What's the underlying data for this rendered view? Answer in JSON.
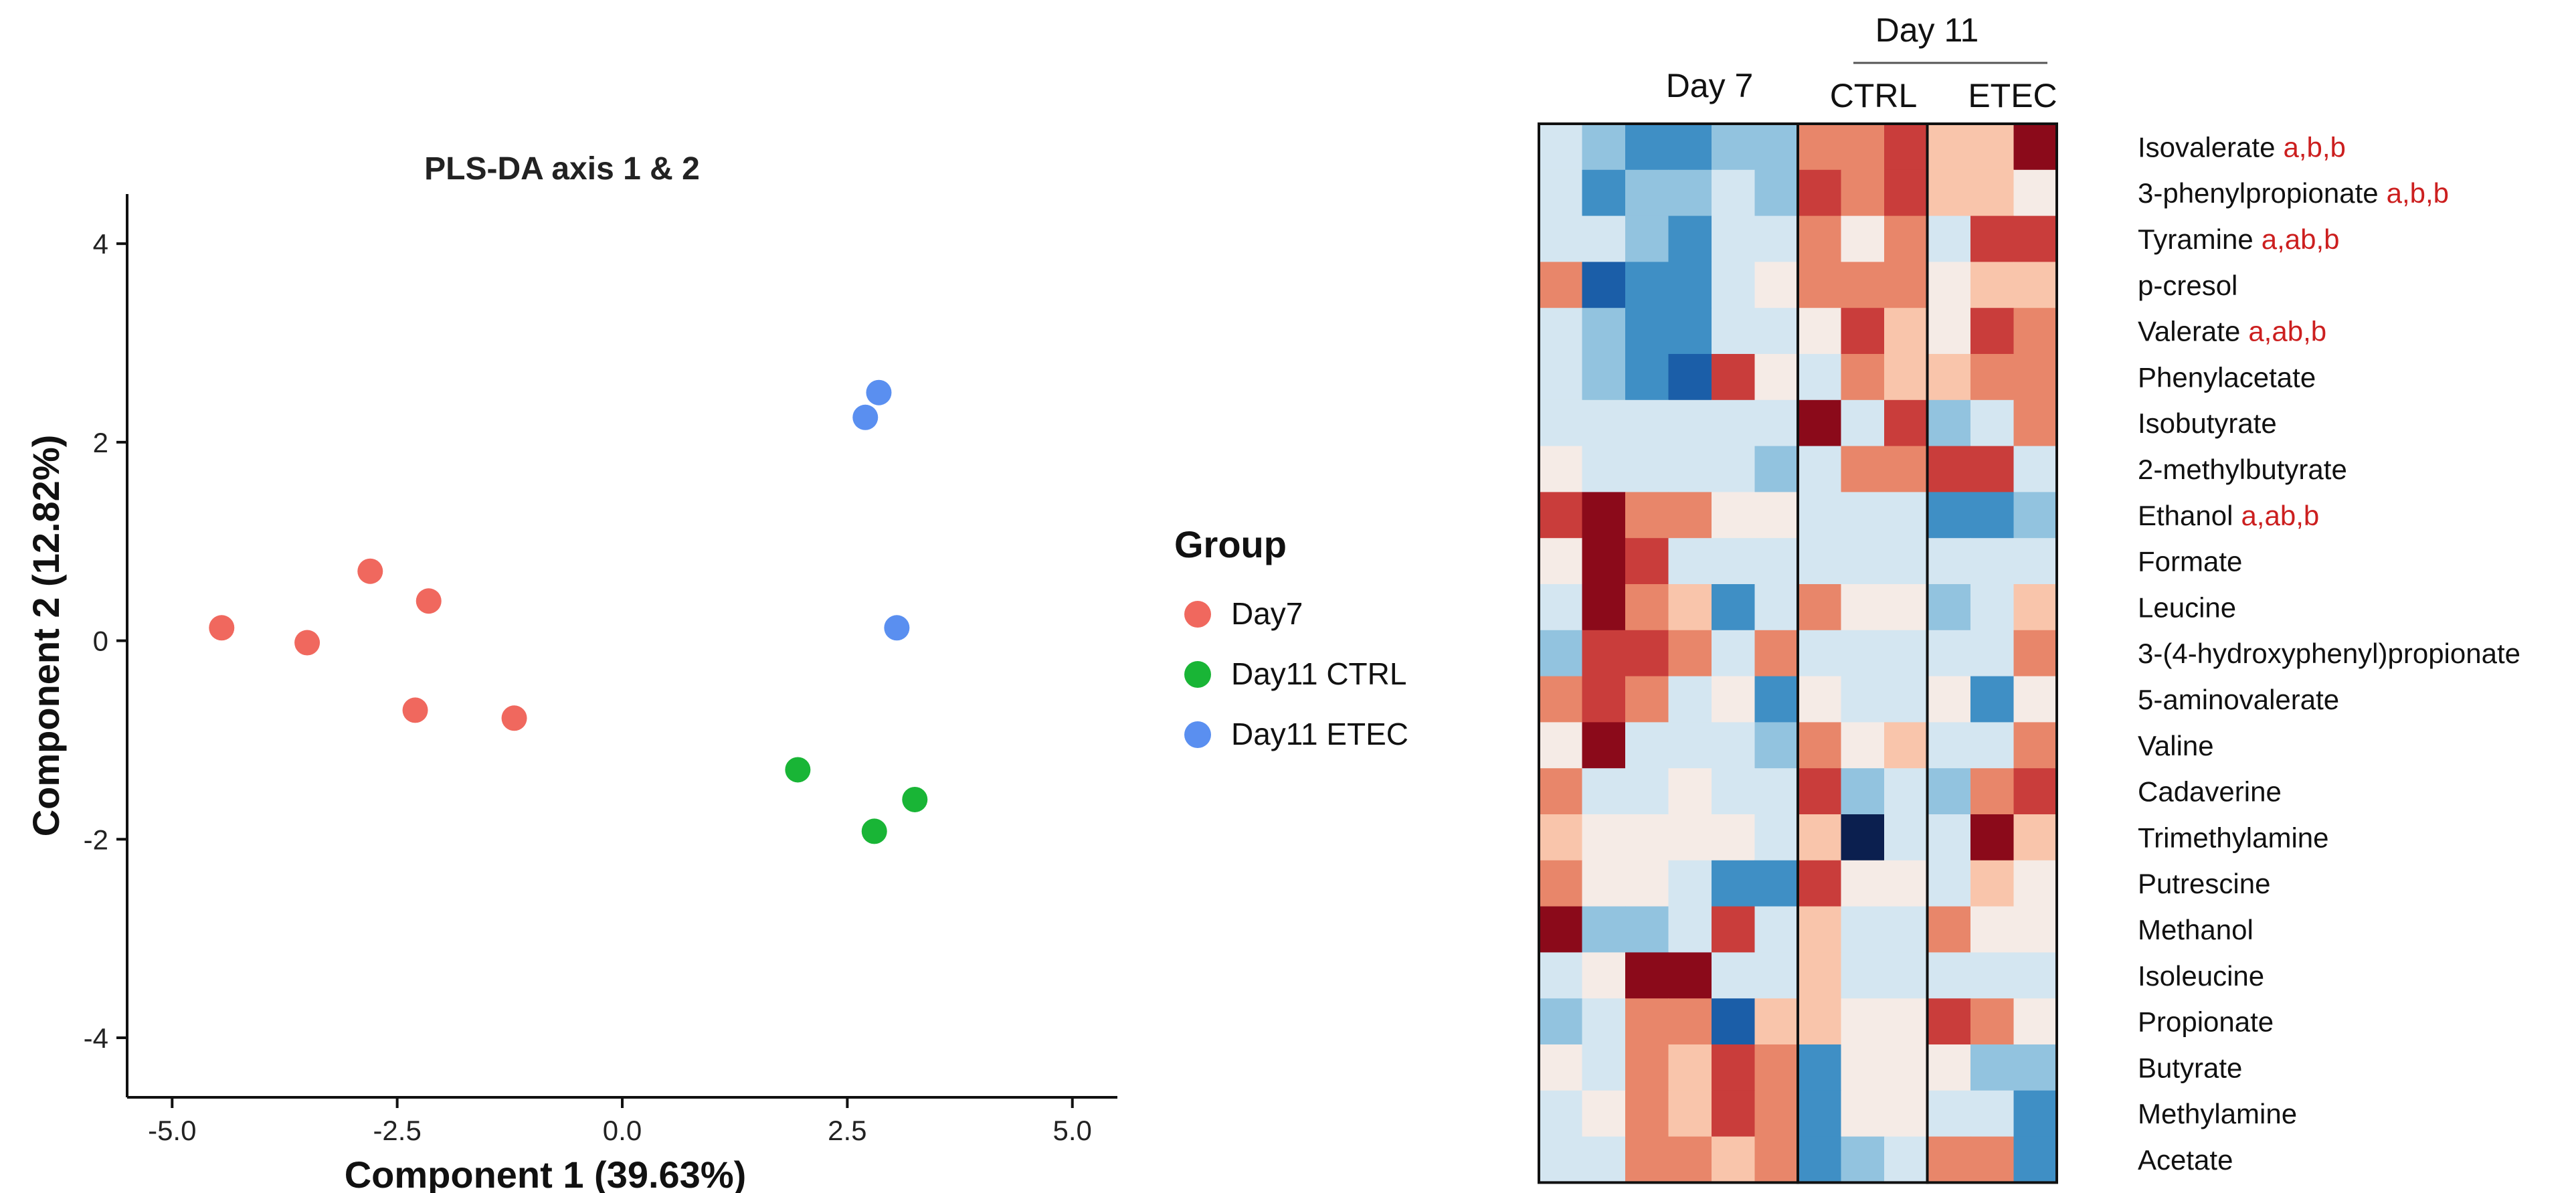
{
  "chart_data": [
    {
      "type": "scatter",
      "title": "PLS-DA axis 1 & 2",
      "xlabel": "Component 1 (39.63%)",
      "ylabel": "Component 2 (12.82%)",
      "xlim": [
        -5.5,
        5.5
      ],
      "ylim": [
        -4.6,
        4.5
      ],
      "xticks": [
        -5,
        -2.5,
        0,
        2.5,
        5
      ],
      "xtick_labels": [
        "-5.0",
        "-2.5",
        "0.0",
        "2.5",
        "5.0"
      ],
      "yticks": [
        -4,
        -2,
        0,
        2,
        4
      ],
      "ytick_labels": [
        "-4",
        "-2",
        "0",
        "2",
        "4"
      ],
      "legend_title": "Group",
      "legend_position": "right",
      "series": [
        {
          "name": "Day7",
          "color": "#f0685e",
          "points": [
            [
              -4.45,
              0.13
            ],
            [
              -3.5,
              -0.02
            ],
            [
              -2.8,
              0.7
            ],
            [
              -2.15,
              0.4
            ],
            [
              -2.3,
              -0.7
            ],
            [
              -1.2,
              -0.78
            ]
          ]
        },
        {
          "name": "Day11 CTRL",
          "color": "#19b536",
          "points": [
            [
              1.95,
              -1.3
            ],
            [
              2.8,
              -1.92
            ],
            [
              3.25,
              -1.6
            ]
          ]
        },
        {
          "name": "Day11 ETEC",
          "color": "#5a8ff0",
          "points": [
            [
              2.7,
              2.25
            ],
            [
              2.85,
              2.5
            ],
            [
              3.05,
              0.13
            ]
          ]
        }
      ]
    },
    {
      "type": "heatmap",
      "header_day7": "Day 7",
      "header_day11": "Day 11",
      "header_ctrl": "CTRL",
      "header_etec": "ETEC",
      "palette": [
        "#0b1f4f",
        "#1b5ea8",
        "#3f8fc5",
        "#92c3df",
        "#d4e6f1",
        "#f5ebe6",
        "#f9c5ab",
        "#e8866a",
        "#c93d3b",
        "#8b0a1a"
      ],
      "rows": [
        {
          "label": "Isovalerate",
          "sig": "a,b,b",
          "values": [
            4,
            3,
            2,
            2,
            3,
            3,
            7,
            7,
            8,
            6,
            6,
            9
          ]
        },
        {
          "label": "3-phenylpropionate",
          "sig": "a,b,b",
          "values": [
            4,
            2,
            3,
            3,
            4,
            3,
            8,
            7,
            8,
            6,
            6,
            5
          ]
        },
        {
          "label": "Tyramine",
          "sig": "a,ab,b",
          "values": [
            4,
            4,
            3,
            2,
            4,
            4,
            7,
            5,
            7,
            4,
            8,
            8
          ]
        },
        {
          "label": "p-cresol",
          "sig": "",
          "values": [
            7,
            1,
            2,
            2,
            4,
            5,
            7,
            7,
            7,
            5,
            6,
            6
          ]
        },
        {
          "label": "Valerate",
          "sig": "a,ab,b",
          "values": [
            4,
            3,
            2,
            2,
            4,
            4,
            5,
            8,
            6,
            5,
            8,
            7
          ]
        },
        {
          "label": "Phenylacetate",
          "sig": "",
          "values": [
            4,
            3,
            2,
            1,
            8,
            5,
            4,
            7,
            6,
            6,
            7,
            7
          ]
        },
        {
          "label": "Isobutyrate",
          "sig": "",
          "values": [
            4,
            4,
            4,
            4,
            4,
            4,
            9,
            4,
            8,
            3,
            4,
            7
          ]
        },
        {
          "label": "2-methylbutyrate",
          "sig": "",
          "values": [
            5,
            4,
            4,
            4,
            4,
            3,
            4,
            7,
            7,
            8,
            8,
            4
          ]
        },
        {
          "label": "Ethanol",
          "sig": "a,ab,b",
          "values": [
            8,
            9,
            7,
            7,
            5,
            5,
            4,
            4,
            4,
            2,
            2,
            3
          ]
        },
        {
          "label": "Formate",
          "sig": "",
          "values": [
            5,
            9,
            8,
            4,
            4,
            4,
            4,
            4,
            4,
            4,
            4,
            4
          ]
        },
        {
          "label": "Leucine",
          "sig": "",
          "values": [
            4,
            9,
            7,
            6,
            2,
            4,
            7,
            5,
            5,
            3,
            4,
            6
          ]
        },
        {
          "label": "3-(4-hydroxyphenyl)propionate",
          "sig": "",
          "values": [
            3,
            8,
            8,
            7,
            4,
            7,
            4,
            4,
            4,
            4,
            4,
            7
          ]
        },
        {
          "label": "5-aminovalerate",
          "sig": "",
          "values": [
            7,
            8,
            7,
            4,
            5,
            2,
            5,
            4,
            4,
            5,
            2,
            5
          ]
        },
        {
          "label": "Valine",
          "sig": "",
          "values": [
            5,
            9,
            4,
            4,
            4,
            3,
            7,
            5,
            6,
            4,
            4,
            7
          ]
        },
        {
          "label": "Cadaverine",
          "sig": "",
          "values": [
            7,
            4,
            4,
            5,
            4,
            4,
            8,
            3,
            4,
            3,
            7,
            8
          ]
        },
        {
          "label": "Trimethylamine",
          "sig": "",
          "values": [
            6,
            5,
            5,
            5,
            5,
            4,
            6,
            0,
            4,
            4,
            9,
            6
          ]
        },
        {
          "label": "Putrescine",
          "sig": "",
          "values": [
            7,
            5,
            5,
            4,
            2,
            2,
            8,
            5,
            5,
            4,
            6,
            5
          ]
        },
        {
          "label": "Methanol",
          "sig": "",
          "values": [
            9,
            3,
            3,
            4,
            8,
            4,
            6,
            4,
            4,
            7,
            5,
            5
          ]
        },
        {
          "label": "Isoleucine",
          "sig": "",
          "values": [
            4,
            5,
            9,
            9,
            4,
            4,
            6,
            4,
            4,
            4,
            4,
            4
          ]
        },
        {
          "label": "Propionate",
          "sig": "",
          "values": [
            3,
            4,
            7,
            7,
            1,
            6,
            6,
            5,
            5,
            8,
            7,
            5
          ]
        },
        {
          "label": "Butyrate",
          "sig": "",
          "values": [
            5,
            4,
            7,
            6,
            8,
            7,
            2,
            5,
            5,
            5,
            3,
            3
          ]
        },
        {
          "label": "Methylamine",
          "sig": "",
          "values": [
            4,
            5,
            7,
            6,
            8,
            7,
            2,
            5,
            5,
            4,
            4,
            2
          ]
        },
        {
          "label": "Acetate",
          "sig": "",
          "values": [
            4,
            4,
            7,
            7,
            6,
            7,
            2,
            3,
            4,
            7,
            7,
            2
          ]
        }
      ]
    }
  ]
}
